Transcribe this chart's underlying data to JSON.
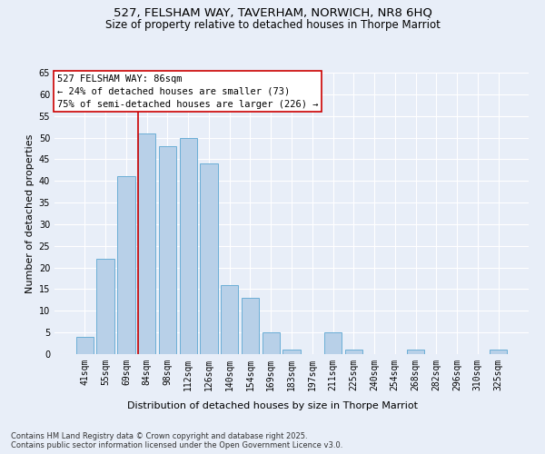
{
  "title_line1": "527, FELSHAM WAY, TAVERHAM, NORWICH, NR8 6HQ",
  "title_line2": "Size of property relative to detached houses in Thorpe Marriot",
  "xlabel": "Distribution of detached houses by size in Thorpe Marriot",
  "ylabel": "Number of detached properties",
  "categories": [
    "41sqm",
    "55sqm",
    "69sqm",
    "84sqm",
    "98sqm",
    "112sqm",
    "126sqm",
    "140sqm",
    "154sqm",
    "169sqm",
    "183sqm",
    "197sqm",
    "211sqm",
    "225sqm",
    "240sqm",
    "254sqm",
    "268sqm",
    "282sqm",
    "296sqm",
    "310sqm",
    "325sqm"
  ],
  "values": [
    4,
    22,
    41,
    51,
    48,
    50,
    44,
    16,
    13,
    5,
    1,
    0,
    5,
    1,
    0,
    0,
    1,
    0,
    0,
    0,
    1
  ],
  "bar_color": "#b8d0e8",
  "bar_edge_color": "#6baed6",
  "vline_color": "#cc0000",
  "vline_bar_index": 3,
  "annotation_line1": "527 FELSHAM WAY: 86sqm",
  "annotation_line2": "← 24% of detached houses are smaller (73)",
  "annotation_line3": "75% of semi-detached houses are larger (226) →",
  "annotation_box_facecolor": "#ffffff",
  "annotation_box_edgecolor": "#cc0000",
  "ylim": [
    0,
    65
  ],
  "yticks": [
    0,
    5,
    10,
    15,
    20,
    25,
    30,
    35,
    40,
    45,
    50,
    55,
    60,
    65
  ],
  "background_color": "#e8eef8",
  "grid_color": "#ffffff",
  "footer_text": "Contains HM Land Registry data © Crown copyright and database right 2025.\nContains public sector information licensed under the Open Government Licence v3.0.",
  "title_fontsize": 9.5,
  "subtitle_fontsize": 8.5,
  "axis_label_fontsize": 8,
  "tick_fontsize": 7,
  "annotation_fontsize": 7.5,
  "footer_fontsize": 6
}
